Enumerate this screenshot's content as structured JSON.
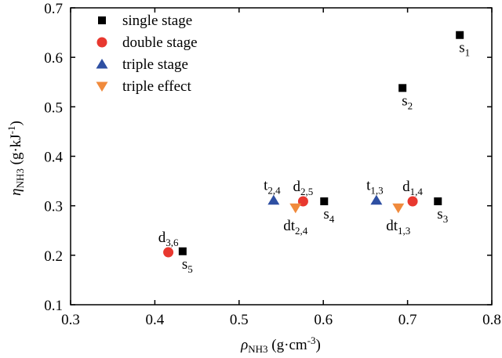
{
  "chart_data": {
    "type": "scatter",
    "xlim": [
      0.3,
      0.8
    ],
    "ylim": [
      0.1,
      0.7
    ],
    "xticks": [
      "0.3",
      "0.4",
      "0.5",
      "0.6",
      "0.7",
      "0.8"
    ],
    "yticks": [
      "0.1",
      "0.2",
      "0.3",
      "0.4",
      "0.5",
      "0.6",
      "0.7"
    ],
    "xlabel": {
      "symbol": "ρ",
      "sub": "NH3",
      "unit": " (g·cm",
      "sup": "-3",
      "close": ")"
    },
    "ylabel": {
      "symbol": "η",
      "sub": "NH3",
      "unit": " (g·kJ",
      "sup": "-1",
      "close": ")"
    },
    "legend_position": "top-left",
    "grid": false,
    "series": [
      {
        "name": "single stage",
        "marker": "square",
        "color": "#000000",
        "points": [
          {
            "x": 0.762,
            "y": 0.645,
            "label": "s",
            "sub": "1"
          },
          {
            "x": 0.694,
            "y": 0.538,
            "label": "s",
            "sub": "2"
          },
          {
            "x": 0.736,
            "y": 0.309,
            "label": "s",
            "sub": "3"
          },
          {
            "x": 0.601,
            "y": 0.309,
            "label": "s",
            "sub": "4"
          },
          {
            "x": 0.433,
            "y": 0.208,
            "label": "s",
            "sub": "5"
          }
        ]
      },
      {
        "name": "double stage",
        "marker": "circle",
        "color": "#e8382f",
        "points": [
          {
            "x": 0.706,
            "y": 0.309,
            "label": "d",
            "sub": "1,4"
          },
          {
            "x": 0.576,
            "y": 0.309,
            "label": "d",
            "sub": "2,5"
          },
          {
            "x": 0.416,
            "y": 0.206,
            "label": "d",
            "sub": "3,6"
          }
        ]
      },
      {
        "name": "triple stage",
        "marker": "triangle-up",
        "color": "#2e4fa2",
        "points": [
          {
            "x": 0.663,
            "y": 0.311,
            "label": "t",
            "sub": "1,3"
          },
          {
            "x": 0.541,
            "y": 0.311,
            "label": "t",
            "sub": "2,4"
          }
        ]
      },
      {
        "name": "triple effect",
        "marker": "triangle-down",
        "color": "#f08a3c",
        "points": [
          {
            "x": 0.689,
            "y": 0.296,
            "label": "dt",
            "sub": "1,3"
          },
          {
            "x": 0.567,
            "y": 0.296,
            "label": "dt",
            "sub": "2,4"
          }
        ]
      }
    ]
  }
}
